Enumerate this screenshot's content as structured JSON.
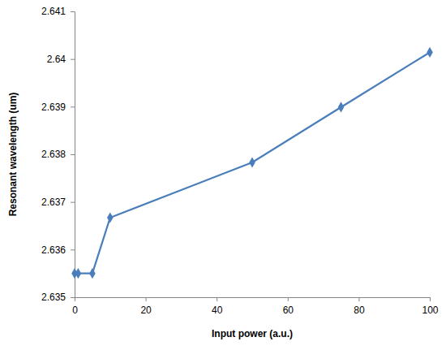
{
  "chart_data": {
    "type": "line",
    "x_label": "Input power (a.u.)",
    "y_label": "Resonant wavelength (um)",
    "x": [
      0,
      1,
      5,
      10,
      50,
      75,
      100
    ],
    "values": [
      2.6355,
      2.6355,
      2.6355,
      2.63667,
      2.63783,
      2.63899,
      2.64014
    ],
    "color": "#4a7ebb",
    "marker": "diamond",
    "line_style": "solid",
    "xlim": [
      0,
      100
    ],
    "xticks": [
      0,
      20,
      40,
      60,
      80,
      100
    ],
    "ylim": [
      2.635,
      2.641
    ],
    "yticks": [
      2.635,
      2.636,
      2.637,
      2.638,
      2.639,
      2.64,
      2.641
    ],
    "grid": false
  }
}
